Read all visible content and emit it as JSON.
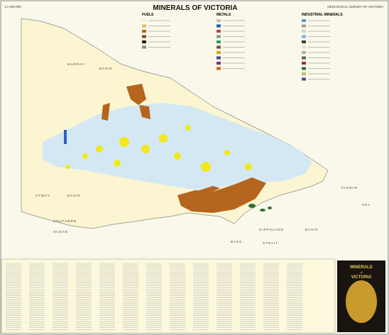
{
  "header": {
    "scale": "1:1 000 000",
    "title": "MINERALS   OF   VICTORIA",
    "agency": "GEOLOGICAL SURVEY OF VICTORIA"
  },
  "legend": {
    "fuels": "FUELS",
    "metals": "METALS",
    "industrial": "INDUSTRIAL MINERALS"
  },
  "map_labels": [
    "MURRAY",
    "BASIN",
    "OTWAY",
    "BASIN",
    "SOUTHERN",
    "OCEAN",
    "BASS",
    "STRAIT",
    "GIPPSLAND",
    "BASIN",
    "TASMAN",
    "SEA"
  ],
  "cover": {
    "line1": "MINERALS",
    "line2": "of",
    "line3": "VICTORIA"
  }
}
